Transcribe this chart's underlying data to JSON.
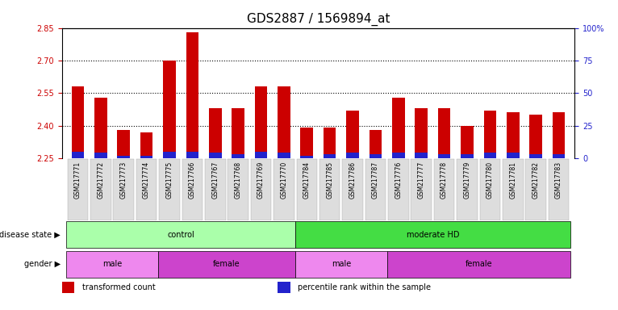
{
  "title": "GDS2887 / 1569894_at",
  "samples": [
    "GSM217771",
    "GSM217772",
    "GSM217773",
    "GSM217774",
    "GSM217775",
    "GSM217766",
    "GSM217767",
    "GSM217768",
    "GSM217769",
    "GSM217770",
    "GSM217784",
    "GSM217785",
    "GSM217786",
    "GSM217787",
    "GSM217776",
    "GSM217777",
    "GSM217778",
    "GSM217779",
    "GSM217780",
    "GSM217781",
    "GSM217782",
    "GSM217783"
  ],
  "transformed_count": [
    2.58,
    2.53,
    2.38,
    2.37,
    2.7,
    2.83,
    2.48,
    2.48,
    2.58,
    2.58,
    2.39,
    2.39,
    2.47,
    2.38,
    2.53,
    2.48,
    2.48,
    2.4,
    2.47,
    2.46,
    2.45,
    2.46
  ],
  "percentile_rank": [
    5,
    4,
    2,
    2,
    5,
    5,
    4,
    3,
    5,
    4,
    2,
    3,
    4,
    3,
    4,
    4,
    3,
    3,
    4,
    4,
    3,
    3
  ],
  "ymin": 2.25,
  "ymax": 2.85,
  "yticks_left": [
    2.25,
    2.4,
    2.55,
    2.7,
    2.85
  ],
  "yticks_right": [
    0,
    25,
    50,
    75,
    100
  ],
  "bar_color_red": "#cc0000",
  "bar_color_blue": "#2222cc",
  "bar_width": 0.55,
  "disease_state": [
    {
      "label": "control",
      "start": 0,
      "end": 10,
      "color": "#aaffaa"
    },
    {
      "label": "moderate HD",
      "start": 10,
      "end": 22,
      "color": "#44dd44"
    }
  ],
  "gender": [
    {
      "label": "male",
      "start": 0,
      "end": 4,
      "color": "#ee88ee"
    },
    {
      "label": "female",
      "start": 4,
      "end": 10,
      "color": "#cc44cc"
    },
    {
      "label": "male",
      "start": 10,
      "end": 14,
      "color": "#ee88ee"
    },
    {
      "label": "female",
      "start": 14,
      "end": 22,
      "color": "#cc44cc"
    }
  ],
  "legend_items": [
    {
      "label": "transformed count",
      "color": "#cc0000"
    },
    {
      "label": "percentile rank within the sample",
      "color": "#2222cc"
    }
  ],
  "bg_color": "#ffffff",
  "title_fontsize": 11,
  "tick_fontsize": 7,
  "annot_fontsize": 7,
  "legend_fontsize": 7
}
